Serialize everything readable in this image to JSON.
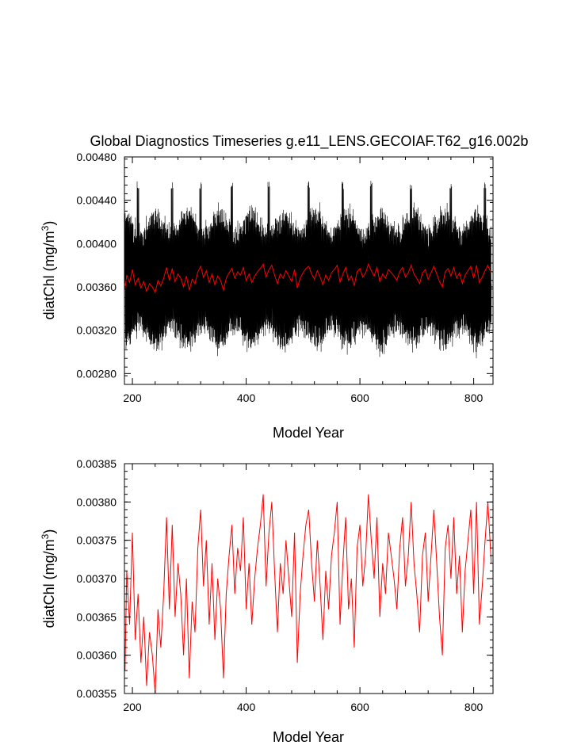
{
  "chart_data": [
    {
      "type": "line",
      "title": "Global Diagnostics Timeseries g.e11_LENS.GECOIAF.T62_g16.002b",
      "xlabel": "Model Year",
      "ylabel_main": "diatChl (mg/m",
      "ylabel_sup": "3",
      "ylabel_close": ")",
      "xlim": [
        186,
        834
      ],
      "ylim": [
        0.0027,
        0.0048
      ],
      "x_ticks": [
        200,
        400,
        600,
        800
      ],
      "x_tick_labels": [
        "200",
        "400",
        "600",
        "800"
      ],
      "y_ticks": [
        0.0028,
        0.0032,
        0.0036,
        0.004,
        0.0044,
        0.0048
      ],
      "y_tick_labels": [
        "0.00280",
        "0.00320",
        "0.00360",
        "0.00400",
        "0.00440",
        "0.00480"
      ],
      "grid": false,
      "series": [
        {
          "description": "monthly",
          "color": "#000000",
          "x_range": [
            187,
            831
          ],
          "baseline": 0.00367,
          "amplitude_typical": 0.00058,
          "peak_years": [
            210,
            270,
            320,
            375,
            440,
            510,
            570,
            620,
            690,
            760,
            820
          ],
          "max_approx": 0.00458,
          "min_approx": 0.00285
        },
        {
          "description": "annual mean",
          "color": "#ff0000",
          "x_range": [
            187,
            831
          ],
          "baseline": 0.00368
        }
      ]
    },
    {
      "type": "line",
      "title": "",
      "xlabel": "Model Year",
      "ylabel_main": "diatChl (mg/m",
      "ylabel_sup": "3",
      "ylabel_close": ")",
      "xlim": [
        186,
        834
      ],
      "ylim": [
        0.00355,
        0.00385
      ],
      "x_ticks": [
        200,
        400,
        600,
        800
      ],
      "x_tick_labels": [
        "200",
        "400",
        "600",
        "800"
      ],
      "y_ticks": [
        0.00355,
        0.0036,
        0.00365,
        0.0037,
        0.00375,
        0.0038,
        0.00385
      ],
      "y_tick_labels": [
        "0.00355",
        "0.00360",
        "0.00365",
        "0.00370",
        "0.00375",
        "0.00380",
        "0.00385"
      ],
      "grid": false,
      "series": [
        {
          "description": "annual mean",
          "color": "#ff0000",
          "x": [
            187,
            190,
            195,
            200,
            205,
            210,
            215,
            220,
            225,
            230,
            235,
            240,
            245,
            250,
            255,
            260,
            265,
            270,
            275,
            280,
            285,
            290,
            295,
            300,
            305,
            310,
            315,
            320,
            325,
            330,
            335,
            340,
            345,
            350,
            355,
            360,
            365,
            370,
            375,
            380,
            385,
            390,
            395,
            400,
            405,
            410,
            415,
            420,
            425,
            430,
            435,
            440,
            445,
            450,
            455,
            460,
            465,
            470,
            475,
            480,
            485,
            490,
            495,
            500,
            505,
            510,
            515,
            520,
            525,
            530,
            535,
            540,
            545,
            550,
            555,
            560,
            565,
            570,
            575,
            580,
            585,
            590,
            595,
            600,
            605,
            610,
            615,
            620,
            625,
            630,
            635,
            640,
            645,
            650,
            655,
            660,
            665,
            670,
            675,
            680,
            685,
            690,
            695,
            700,
            705,
            710,
            715,
            720,
            725,
            730,
            735,
            740,
            745,
            750,
            755,
            760,
            765,
            770,
            775,
            780,
            785,
            790,
            795,
            800,
            805,
            810,
            815,
            820,
            825,
            831
          ],
          "values": [
            0.00358,
            0.00371,
            0.00364,
            0.00376,
            0.00362,
            0.00368,
            0.00359,
            0.00365,
            0.00356,
            0.00363,
            0.0036,
            0.00355,
            0.00366,
            0.00361,
            0.00368,
            0.00378,
            0.00366,
            0.00377,
            0.00365,
            0.00372,
            0.00368,
            0.0036,
            0.0037,
            0.00357,
            0.00367,
            0.00363,
            0.00374,
            0.00379,
            0.00369,
            0.00375,
            0.00364,
            0.00372,
            0.00362,
            0.0037,
            0.00366,
            0.00357,
            0.00368,
            0.00373,
            0.00377,
            0.00368,
            0.00374,
            0.00371,
            0.00378,
            0.00366,
            0.00372,
            0.00364,
            0.0037,
            0.00374,
            0.00377,
            0.00381,
            0.00369,
            0.00376,
            0.0038,
            0.00371,
            0.00363,
            0.00372,
            0.00368,
            0.00375,
            0.0037,
            0.00365,
            0.00376,
            0.00359,
            0.00368,
            0.00373,
            0.00377,
            0.00379,
            0.00372,
            0.00367,
            0.00375,
            0.00369,
            0.00362,
            0.00371,
            0.00366,
            0.00373,
            0.00376,
            0.0038,
            0.00364,
            0.00372,
            0.00378,
            0.00366,
            0.0037,
            0.00361,
            0.00374,
            0.00377,
            0.00369,
            0.00373,
            0.00381,
            0.00375,
            0.0037,
            0.00378,
            0.00365,
            0.00372,
            0.00368,
            0.00376,
            0.00373,
            0.0037,
            0.00366,
            0.00374,
            0.00378,
            0.00369,
            0.00373,
            0.0038,
            0.00372,
            0.00368,
            0.00363,
            0.00373,
            0.00376,
            0.00367,
            0.00373,
            0.00379,
            0.00372,
            0.00365,
            0.0036,
            0.00374,
            0.00377,
            0.0037,
            0.00378,
            0.00368,
            0.00373,
            0.00363,
            0.00371,
            0.00375,
            0.00379,
            0.00368,
            0.0038,
            0.00364,
            0.00369,
            0.00375,
            0.0038,
            0.00372
          ]
        }
      ]
    }
  ]
}
